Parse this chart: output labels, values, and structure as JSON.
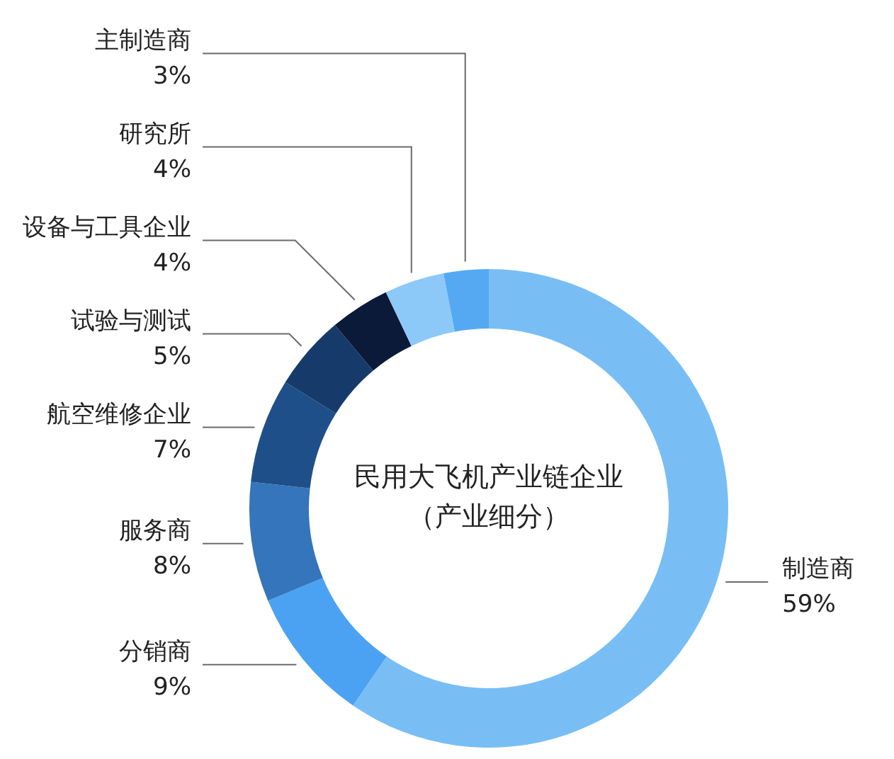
{
  "chart_data": {
    "type": "donut",
    "title": "民用大飞机产业链企业",
    "subtitle": "（产业细分）",
    "categories": [
      "制造商",
      "分销商",
      "服务商",
      "航空维修企业",
      "试验与测试",
      "设备与工具企业",
      "研究所",
      "主制造商"
    ],
    "values": [
      59,
      9,
      8,
      7,
      5,
      4,
      4,
      3
    ],
    "value_labels": [
      "59%",
      "9%",
      "8%",
      "7%",
      "5%",
      "4%",
      "4%",
      "3%"
    ],
    "colors": [
      "#78bef5",
      "#4ba2f2",
      "#3475bb",
      "#1f4f88",
      "#163b6b",
      "#0b1a38",
      "#8cc8f8",
      "#54a9f2"
    ]
  }
}
